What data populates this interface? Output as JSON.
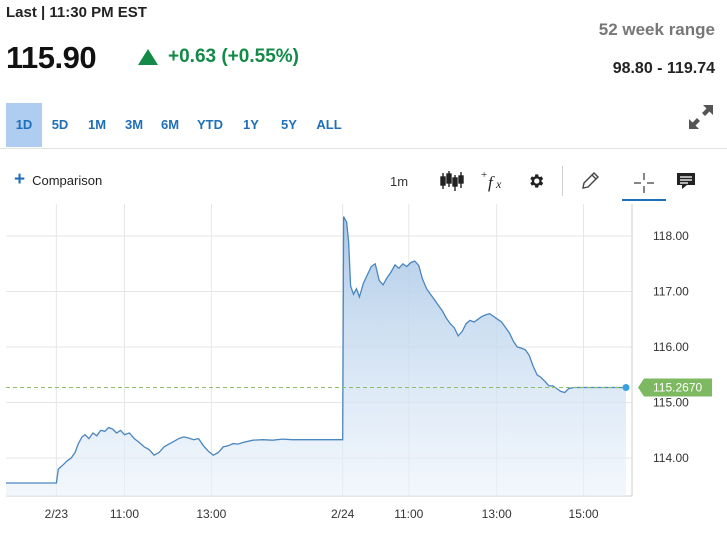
{
  "header": {
    "last_label": "Last | 11:30 PM EST",
    "price": "115.90",
    "change": "+0.63 (+0.55%)",
    "range_label": "52 week range",
    "range_value": "98.80 - 119.74"
  },
  "periods": [
    "1D",
    "5D",
    "1M",
    "3M",
    "6M",
    "YTD",
    "1Y",
    "5Y",
    "ALL"
  ],
  "active_period": "1D",
  "toolbar": {
    "comparison_label": "Comparison",
    "interval_label": "1m",
    "icons": [
      "candlestick-icon",
      "function-icon",
      "gear-icon",
      "pencil-icon",
      "crosshair-icon",
      "comment-icon"
    ],
    "active_tool": "crosshair"
  },
  "colors": {
    "accent": "#1f6fba",
    "positive": "#138a47",
    "line": "#4a86c0",
    "current_label_bg": "#7cb960",
    "reference_line": "#8dbf6d"
  },
  "chart_data": {
    "type": "area",
    "x_ticks": [
      "2/23",
      "11:00",
      "13:00",
      "2/24",
      "11:00",
      "13:00",
      "15:00"
    ],
    "y_ticks": [
      "114.00",
      "115.00",
      "116.00",
      "117.00",
      "118.00"
    ],
    "ylim": [
      113.55,
      118.4
    ],
    "grid": true,
    "current_value_label": "115.2670",
    "reference_line_value": 115.27,
    "series": [
      {
        "values": [
          [
            0,
            113.55
          ],
          [
            51,
            113.55
          ],
          [
            53,
            113.8
          ],
          [
            58,
            113.88
          ],
          [
            62,
            113.95
          ],
          [
            66,
            114.0
          ],
          [
            70,
            114.1
          ],
          [
            73,
            114.25
          ],
          [
            77,
            114.38
          ],
          [
            80,
            114.42
          ],
          [
            84,
            114.35
          ],
          [
            88,
            114.45
          ],
          [
            92,
            114.4
          ],
          [
            96,
            114.5
          ],
          [
            100,
            114.48
          ],
          [
            104,
            114.55
          ],
          [
            108,
            114.52
          ],
          [
            112,
            114.45
          ],
          [
            116,
            114.5
          ],
          [
            120,
            114.42
          ],
          [
            125,
            114.45
          ],
          [
            130,
            114.35
          ],
          [
            135,
            114.28
          ],
          [
            140,
            114.2
          ],
          [
            145,
            114.15
          ],
          [
            150,
            114.05
          ],
          [
            155,
            114.1
          ],
          [
            160,
            114.2
          ],
          [
            165,
            114.25
          ],
          [
            170,
            114.3
          ],
          [
            175,
            114.35
          ],
          [
            180,
            114.38
          ],
          [
            185,
            114.36
          ],
          [
            190,
            114.33
          ],
          [
            195,
            114.35
          ],
          [
            200,
            114.22
          ],
          [
            205,
            114.12
          ],
          [
            210,
            114.05
          ],
          [
            215,
            114.1
          ],
          [
            220,
            114.2
          ],
          [
            225,
            114.22
          ],
          [
            230,
            114.26
          ],
          [
            235,
            114.25
          ],
          [
            240,
            114.28
          ],
          [
            250,
            114.32
          ],
          [
            260,
            114.33
          ],
          [
            270,
            114.32
          ],
          [
            280,
            114.34
          ],
          [
            290,
            114.33
          ],
          [
            300,
            114.33
          ],
          [
            310,
            114.33
          ],
          [
            320,
            114.33
          ],
          [
            330,
            114.33
          ],
          [
            341,
            114.33
          ],
          [
            342,
            118.35
          ],
          [
            345,
            118.25
          ],
          [
            347,
            117.9
          ],
          [
            349,
            117.1
          ],
          [
            352,
            116.95
          ],
          [
            355,
            117.05
          ],
          [
            358,
            116.9
          ],
          [
            362,
            117.15
          ],
          [
            366,
            117.3
          ],
          [
            370,
            117.45
          ],
          [
            374,
            117.5
          ],
          [
            378,
            117.2
          ],
          [
            382,
            117.12
          ],
          [
            386,
            117.25
          ],
          [
            390,
            117.35
          ],
          [
            394,
            117.48
          ],
          [
            398,
            117.42
          ],
          [
            402,
            117.5
          ],
          [
            406,
            117.45
          ],
          [
            410,
            117.52
          ],
          [
            414,
            117.55
          ],
          [
            418,
            117.47
          ],
          [
            422,
            117.22
          ],
          [
            426,
            117.05
          ],
          [
            430,
            116.95
          ],
          [
            434,
            116.85
          ],
          [
            438,
            116.75
          ],
          [
            442,
            116.65
          ],
          [
            446,
            116.52
          ],
          [
            450,
            116.42
          ],
          [
            454,
            116.35
          ],
          [
            458,
            116.2
          ],
          [
            462,
            116.28
          ],
          [
            466,
            116.42
          ],
          [
            470,
            116.48
          ],
          [
            474,
            116.45
          ],
          [
            478,
            116.5
          ],
          [
            482,
            116.55
          ],
          [
            486,
            116.58
          ],
          [
            490,
            116.6
          ],
          [
            494,
            116.55
          ],
          [
            498,
            116.5
          ],
          [
            502,
            116.45
          ],
          [
            506,
            116.35
          ],
          [
            510,
            116.25
          ],
          [
            514,
            116.1
          ],
          [
            518,
            116.0
          ],
          [
            522,
            115.98
          ],
          [
            526,
            115.95
          ],
          [
            530,
            115.85
          ],
          [
            534,
            115.65
          ],
          [
            538,
            115.5
          ],
          [
            542,
            115.45
          ],
          [
            546,
            115.38
          ],
          [
            550,
            115.3
          ],
          [
            554,
            115.3
          ],
          [
            558,
            115.25
          ],
          [
            562,
            115.2
          ],
          [
            566,
            115.18
          ],
          [
            570,
            115.25
          ],
          [
            575,
            115.27
          ],
          [
            600,
            115.27
          ],
          [
            628,
            115.27
          ]
        ]
      }
    ]
  }
}
